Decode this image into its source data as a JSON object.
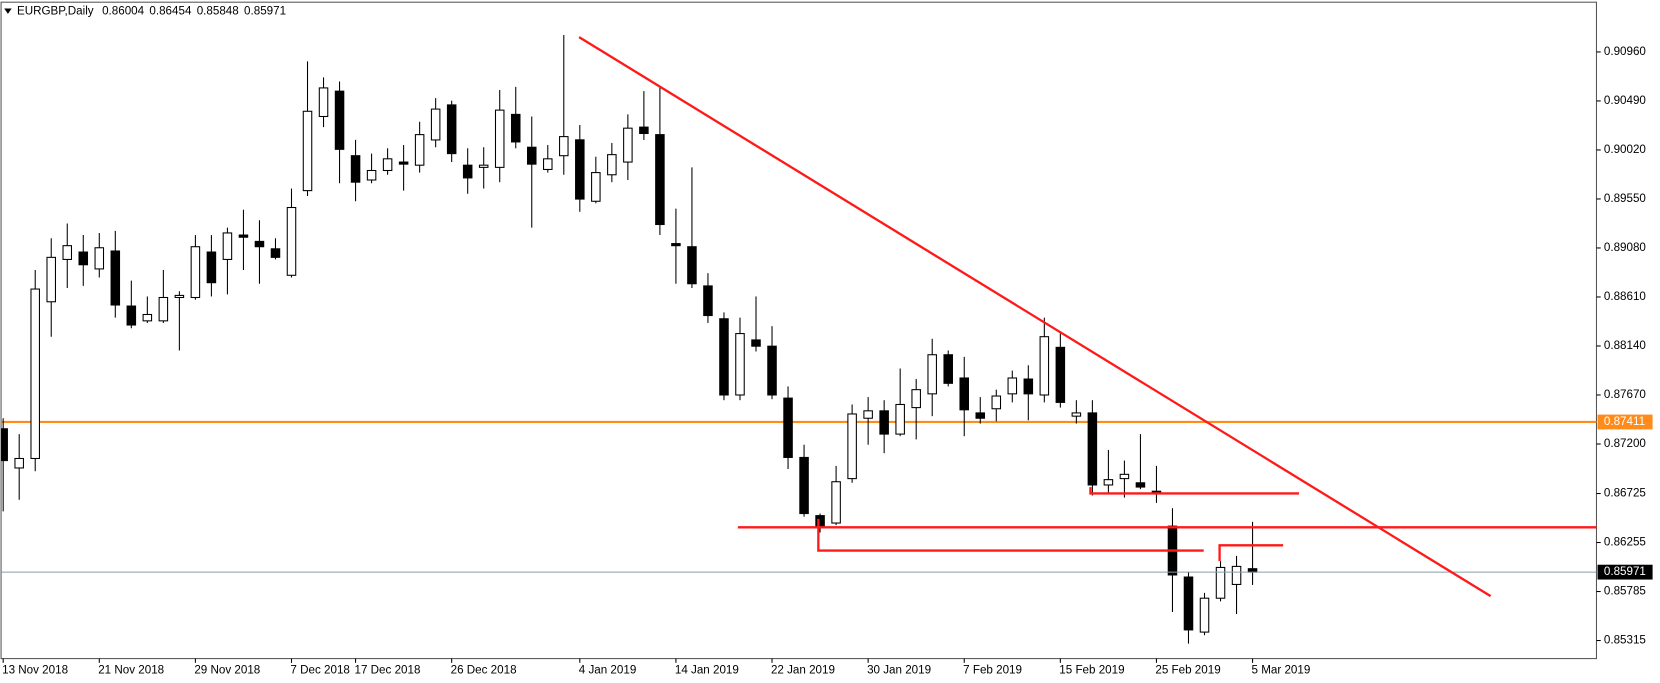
{
  "chart_data": {
    "type": "candlestick",
    "title": "EURGBP,Daily",
    "categories": [
      "13 Nov 2018",
      null,
      null,
      null,
      null,
      null,
      "21 Nov 2018",
      null,
      null,
      null,
      null,
      null,
      "29 Nov 2018",
      null,
      null,
      null,
      null,
      null,
      "7 Dec 2018",
      null,
      null,
      null,
      "17 Dec 2018",
      null,
      null,
      null,
      null,
      null,
      "26 Dec 2018",
      null,
      null,
      null,
      null,
      null,
      null,
      null,
      "4 Jan 2019",
      null,
      null,
      null,
      null,
      null,
      "14 Jan 2019",
      null,
      null,
      null,
      null,
      null,
      "22 Jan 2019",
      null,
      null,
      null,
      null,
      null,
      "30 Jan 2019",
      null,
      null,
      null,
      null,
      null,
      "7 Feb 2019",
      null,
      null,
      null,
      null,
      null,
      "15 Feb 2019",
      null,
      null,
      null,
      null,
      null,
      "25 Feb 2019",
      null,
      null,
      null,
      null,
      null,
      "5 Mar 2019"
    ],
    "open": [
      0.87346,
      0.8697,
      0.87061,
      0.88564,
      0.8897,
      0.89041,
      0.88879,
      0.89051,
      0.88523,
      0.88381,
      0.88381,
      0.88605,
      0.88605,
      0.89041,
      0.8897,
      0.89204,
      0.89143,
      0.89072,
      0.88818,
      0.8963,
      0.90341,
      0.90584,
      0.89965,
      0.89732,
      0.89823,
      0.89904,
      0.89874,
      0.90116,
      0.90452,
      0.89874,
      0.89853,
      0.89853,
      0.90361,
      0.90046,
      0.89833,
      0.89965,
      0.90117,
      0.89528,
      0.89782,
      0.89904,
      0.90239,
      0.90167,
      0.89122,
      0.89092,
      0.88716,
      0.88401,
      0.8767,
      0.88198,
      0.88138,
      0.8764,
      0.87071,
      0.86513,
      0.86442,
      0.86868,
      0.87447,
      0.87518,
      0.87295,
      0.87549,
      0.87681,
      0.88056,
      0.87833,
      0.87498,
      0.87538,
      0.87681,
      0.87823,
      0.8767,
      0.88127,
      0.87467,
      0.87498,
      0.86807,
      0.86868,
      0.86828,
      0.86747,
      0.86412,
      0.85924,
      0.85396,
      0.85721,
      0.85853,
      0.86004
    ],
    "high": [
      0.87447,
      0.87295,
      0.88869,
      0.89173,
      0.89315,
      0.89204,
      0.89224,
      0.89244,
      0.88767,
      0.88615,
      0.88869,
      0.88665,
      0.89204,
      0.89204,
      0.89275,
      0.89447,
      0.89346,
      0.89173,
      0.8965,
      0.90869,
      0.90716,
      0.90676,
      0.90117,
      0.89985,
      0.90036,
      0.90067,
      0.9029,
      0.90517,
      0.90493,
      0.90036,
      0.90046,
      0.90595,
      0.90625,
      0.90341,
      0.90067,
      0.91123,
      0.90259,
      0.89955,
      0.90087,
      0.90361,
      0.90584,
      0.90625,
      0.89457,
      0.89853,
      0.88838,
      0.88462,
      0.88412,
      0.88615,
      0.8833,
      0.87752,
      0.87193,
      0.86533,
      0.8699,
      0.87579,
      0.8765,
      0.8762,
      0.87924,
      0.87823,
      0.88209,
      0.88097,
      0.88036,
      0.8765,
      0.87721,
      0.87904,
      0.87955,
      0.88412,
      0.88259,
      0.8762,
      0.8762,
      0.87143,
      0.87041,
      0.87295,
      0.8699,
      0.86584,
      0.85975,
      0.85772,
      0.86076,
      0.86127,
      0.86454
    ],
    "low": [
      0.86554,
      0.86665,
      0.86939,
      0.88229,
      0.88696,
      0.88716,
      0.88797,
      0.88412,
      0.8831,
      0.88361,
      0.88361,
      0.88097,
      0.88584,
      0.88615,
      0.88635,
      0.88869,
      0.88737,
      0.8897,
      0.88797,
      0.89579,
      0.90239,
      0.89701,
      0.89528,
      0.89701,
      0.89782,
      0.8963,
      0.89803,
      0.90046,
      0.89904,
      0.896,
      0.8965,
      0.89711,
      0.90036,
      0.89275,
      0.89803,
      0.89782,
      0.89427,
      0.89508,
      0.89711,
      0.89732,
      0.90116,
      0.89204,
      0.88737,
      0.88696,
      0.88361,
      0.8762,
      0.8762,
      0.88087,
      0.8763,
      0.8696,
      0.86503,
      0.86351,
      0.86422,
      0.86828,
      0.87193,
      0.87112,
      0.87275,
      0.87244,
      0.87467,
      0.87752,
      0.87275,
      0.87396,
      0.87417,
      0.87599,
      0.87427,
      0.87599,
      0.87549,
      0.87396,
      0.86706,
      0.86726,
      0.86686,
      0.86767,
      0.86635,
      0.85589,
      0.85285,
      0.85366,
      0.85691,
      0.85569,
      0.85848
    ],
    "close": [
      0.87041,
      0.87061,
      0.88686,
      0.8899,
      0.89102,
      0.88919,
      0.89082,
      0.88533,
      0.88341,
      0.88442,
      0.88605,
      0.88625,
      0.89092,
      0.88747,
      0.89224,
      0.89183,
      0.89092,
      0.8899,
      0.89468,
      0.90391,
      0.90615,
      0.90026,
      0.89711,
      0.89823,
      0.89935,
      0.89884,
      0.90167,
      0.90412,
      0.89985,
      0.89752,
      0.89874,
      0.90402,
      0.90097,
      0.89884,
      0.89935,
      0.90148,
      0.89549,
      0.89803,
      0.89975,
      0.90229,
      0.90178,
      0.89305,
      0.89102,
      0.88737,
      0.88432,
      0.8767,
      0.88259,
      0.88138,
      0.8767,
      0.87071,
      0.86533,
      0.86412,
      0.86838,
      0.87488,
      0.87518,
      0.87295,
      0.87579,
      0.87721,
      0.88056,
      0.87782,
      0.87528,
      0.87447,
      0.8766,
      0.87833,
      0.87681,
      0.88229,
      0.87599,
      0.87498,
      0.86807,
      0.86858,
      0.86909,
      0.86787,
      0.86736,
      0.85944,
      0.85417,
      0.85721,
      0.86016,
      0.86026,
      0.85971
    ],
    "up_color": "#ffffff",
    "down_color": "#000000",
    "ylim": [
      0.85142,
      0.91427
    ],
    "yticks": [
      {
        "value": 0.9096,
        "label": "0.90960"
      },
      {
        "value": 0.9049,
        "label": "0.90490"
      },
      {
        "value": 0.9002,
        "label": "0.90020"
      },
      {
        "value": 0.8955,
        "label": "0.89550"
      },
      {
        "value": 0.8908,
        "label": "0.89080"
      },
      {
        "value": 0.8861,
        "label": "0.88610"
      },
      {
        "value": 0.8814,
        "label": "0.88140"
      },
      {
        "value": 0.8767,
        "label": "0.87670"
      },
      {
        "value": 0.872,
        "label": "0.87200"
      },
      {
        "value": 0.86725,
        "label": "0.86725"
      },
      {
        "value": 0.86255,
        "label": "0.86255"
      },
      {
        "value": 0.85785,
        "label": "0.85785"
      },
      {
        "value": 0.85315,
        "label": "0.85315"
      }
    ],
    "hlines": [
      {
        "value": 0.87411,
        "color": "#ff8c1a"
      }
    ],
    "grid": false
  }
}
